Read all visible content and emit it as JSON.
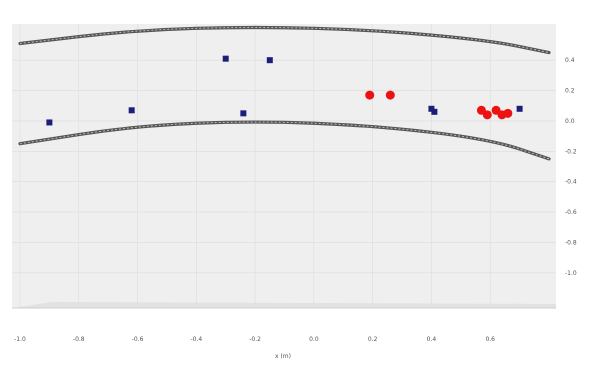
{
  "chart_data": {
    "type": "scatter",
    "title": "",
    "xlabel": "x (m)",
    "ylabel": "",
    "xlim": [
      -1.0,
      0.8
    ],
    "ylim": [
      -1.1,
      0.5
    ],
    "grid": true,
    "xticks": [
      "-1.0",
      "-0.8",
      "-0.6",
      "-0.4",
      "-0.2",
      "0.0",
      "0.2",
      "0.4",
      "0.6"
    ],
    "yticks": [
      "0.4",
      "0.2",
      "0.0",
      "-0.2",
      "-0.4",
      "-0.6",
      "-0.8",
      "-1.0"
    ],
    "series": [
      {
        "color": "#1b1f7a",
        "marker": "square",
        "x": [
          -0.9,
          -0.62,
          -0.3,
          -0.15,
          -0.24,
          0.4,
          0.41,
          0.7
        ],
        "y": [
          -0.01,
          0.07,
          0.41,
          0.4,
          0.05,
          0.08,
          0.06,
          0.08
        ]
      },
      {
        "color": "#ee1111",
        "marker": "circle",
        "x": [
          0.19,
          0.26,
          0.57,
          0.59,
          0.62,
          0.64,
          0.66
        ],
        "y": [
          0.17,
          0.17,
          0.07,
          0.04,
          0.07,
          0.04,
          0.05
        ]
      }
    ],
    "bands": {
      "color": "#555555",
      "curves": [
        {
          "x": [
            -1.0,
            -0.6,
            -0.2,
            0.2,
            0.6,
            0.8
          ],
          "y": [
            0.51,
            0.6,
            0.62,
            0.6,
            0.53,
            0.45
          ]
        },
        {
          "x": [
            -1.0,
            -0.6,
            -0.2,
            0.2,
            0.6,
            0.8
          ],
          "y": [
            -0.15,
            -0.03,
            0.0,
            -0.03,
            -0.12,
            -0.25
          ]
        }
      ]
    }
  }
}
